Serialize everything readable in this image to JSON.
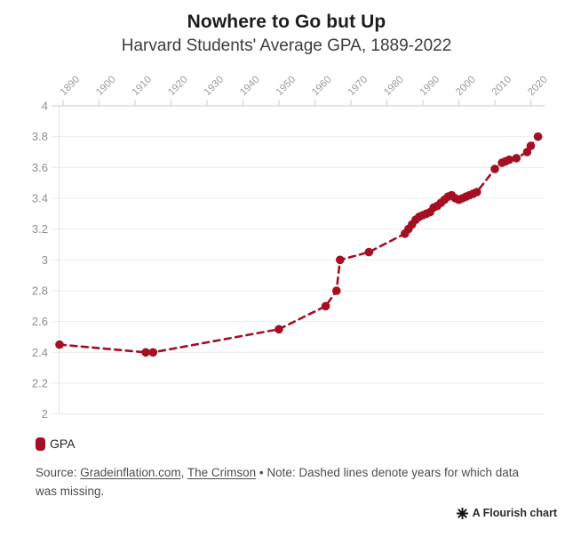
{
  "header": {
    "title": "Nowhere to Go but Up",
    "subtitle": "Harvard Students' Average GPA, 1889-2022"
  },
  "legend": {
    "label": "GPA",
    "swatch_color": "#a40f24"
  },
  "footer": {
    "source_prefix": "Source: ",
    "link1": "Gradeinflation.com",
    "separator": ", ",
    "link2": "The Crimson",
    "note": " • Note: Dashed lines denote years for which data was missing."
  },
  "branding": {
    "icon": "flourish-starburst",
    "label": "A Flourish chart"
  },
  "chart_data": {
    "type": "line",
    "title": "Nowhere to Go but Up",
    "subtitle": "Harvard Students' Average GPA, 1889-2022",
    "xlabel": "",
    "ylabel": "",
    "x_ticks": [
      1890,
      1900,
      1910,
      1920,
      1930,
      1940,
      1950,
      1960,
      1970,
      1980,
      1990,
      2000,
      2010,
      2020
    ],
    "y_ticks": [
      2,
      2.2,
      2.4,
      2.6,
      2.8,
      3,
      3.2,
      3.4,
      3.6,
      3.8,
      4
    ],
    "xlim": [
      1889,
      2022
    ],
    "ylim": [
      2,
      4
    ],
    "grid": "horizontal",
    "legend_position": "bottom-left",
    "line_style": "dashed",
    "marker": "circle",
    "note": "Dashed lines denote years for which data was missing",
    "colors": {
      "line": "#a40f24",
      "grid": "#ececec",
      "axis": "#c9c9c9",
      "axis_y": "#e3e3e3",
      "tick": "#cfcfcf",
      "x_label": "#9b9b9b",
      "y_label": "#8f8f8f"
    },
    "series": [
      {
        "name": "GPA",
        "points": [
          [
            1889,
            2.45
          ],
          [
            1913,
            2.4
          ],
          [
            1915,
            2.4
          ],
          [
            1950,
            2.55
          ],
          [
            1963,
            2.7
          ],
          [
            1966,
            2.8
          ],
          [
            1967,
            3.0
          ],
          [
            1975,
            3.05
          ],
          [
            1985,
            3.17
          ],
          [
            1986,
            3.2
          ],
          [
            1987,
            3.23
          ],
          [
            1988,
            3.26
          ],
          [
            1989,
            3.28
          ],
          [
            1990,
            3.29
          ],
          [
            1991,
            3.3
          ],
          [
            1992,
            3.31
          ],
          [
            1993,
            3.34
          ],
          [
            1994,
            3.35
          ],
          [
            1995,
            3.37
          ],
          [
            1996,
            3.39
          ],
          [
            1997,
            3.41
          ],
          [
            1998,
            3.42
          ],
          [
            1999,
            3.4
          ],
          [
            2000,
            3.39
          ],
          [
            2001,
            3.4
          ],
          [
            2002,
            3.41
          ],
          [
            2003,
            3.42
          ],
          [
            2004,
            3.43
          ],
          [
            2005,
            3.44
          ],
          [
            2010,
            3.59
          ],
          [
            2012,
            3.63
          ],
          [
            2013,
            3.64
          ],
          [
            2014,
            3.65
          ],
          [
            2016,
            3.66
          ],
          [
            2019,
            3.7
          ],
          [
            2020,
            3.74
          ],
          [
            2022,
            3.8
          ]
        ]
      }
    ]
  }
}
